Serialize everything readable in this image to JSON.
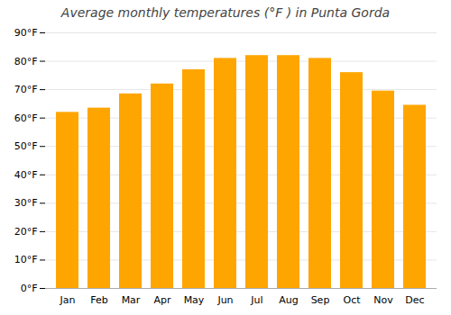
{
  "chart_data": {
    "type": "bar",
    "title": "Average monthly temperatures (°F ) in Punta Gorda",
    "categories": [
      "Jan",
      "Feb",
      "Mar",
      "Apr",
      "May",
      "Jun",
      "Jul",
      "Aug",
      "Sep",
      "Oct",
      "Nov",
      "Dec"
    ],
    "values": [
      62,
      63.5,
      68.5,
      72,
      77,
      81,
      82,
      82,
      81,
      76,
      69.5,
      64.5
    ],
    "color": "#FFA500",
    "ylim": [
      0,
      90
    ],
    "yticks": [
      {
        "value": 0,
        "label": "0°F"
      },
      {
        "value": 10,
        "label": "10°F"
      },
      {
        "value": 20,
        "label": "20°F"
      },
      {
        "value": 30,
        "label": "30°F"
      },
      {
        "value": 40,
        "label": "40°F"
      },
      {
        "value": 50,
        "label": "50°F"
      },
      {
        "value": 60,
        "label": "60°F"
      },
      {
        "value": 70,
        "label": "70°F"
      },
      {
        "value": 80,
        "label": "80°F"
      },
      {
        "value": 90,
        "label": "90°F"
      }
    ],
    "grid": true
  }
}
